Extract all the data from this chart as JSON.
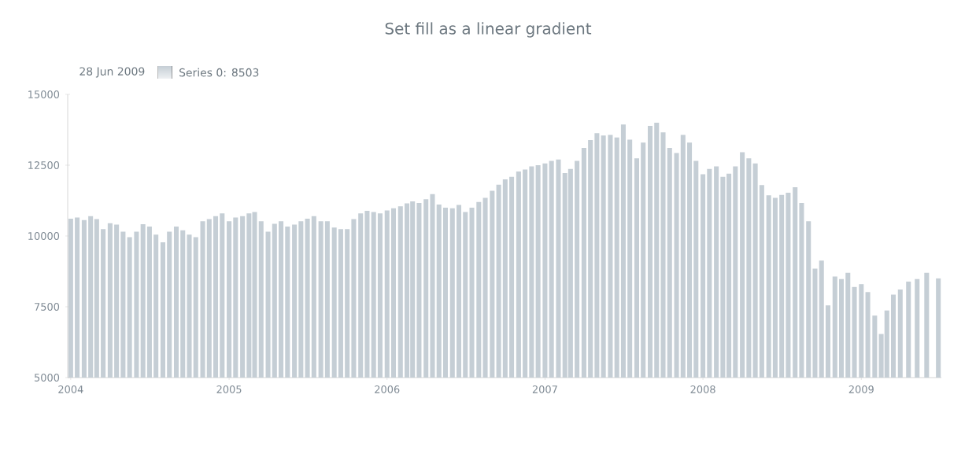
{
  "chart_data": {
    "type": "bar",
    "title": "Set fill as a linear gradient",
    "legend_title": "28 Jun 2009",
    "legend": "top left",
    "x": [
      "2004-01-01",
      "2004-01-16",
      "2004-02-01",
      "2004-02-16",
      "2004-03-01",
      "2004-03-16",
      "2004-04-01",
      "2004-04-16",
      "2004-05-01",
      "2004-05-16",
      "2004-06-01",
      "2004-06-16",
      "2004-07-01",
      "2004-07-16",
      "2004-08-01",
      "2004-08-16",
      "2004-09-01",
      "2004-09-16",
      "2004-10-01",
      "2004-10-16",
      "2004-11-01",
      "2004-11-16",
      "2004-12-01",
      "2004-12-16",
      "2005-01-01",
      "2005-01-16",
      "2005-02-01",
      "2005-02-16",
      "2005-03-01",
      "2005-03-16",
      "2005-04-01",
      "2005-04-16",
      "2005-05-01",
      "2005-05-16",
      "2005-06-01",
      "2005-06-16",
      "2005-07-01",
      "2005-07-16",
      "2005-08-01",
      "2005-08-16",
      "2005-09-01",
      "2005-09-16",
      "2005-10-01",
      "2005-10-16",
      "2005-11-01",
      "2005-11-16",
      "2005-12-01",
      "2005-12-16",
      "2006-01-01",
      "2006-01-16",
      "2006-02-01",
      "2006-02-16",
      "2006-03-01",
      "2006-03-16",
      "2006-04-01",
      "2006-04-16",
      "2006-05-01",
      "2006-05-16",
      "2006-06-01",
      "2006-06-16",
      "2006-07-01",
      "2006-07-16",
      "2006-08-01",
      "2006-08-16",
      "2006-09-01",
      "2006-09-16",
      "2006-10-01",
      "2006-10-16",
      "2006-11-01",
      "2006-11-16",
      "2006-12-01",
      "2006-12-16",
      "2007-01-01",
      "2007-01-16",
      "2007-02-01",
      "2007-02-16",
      "2007-03-01",
      "2007-03-16",
      "2007-04-01",
      "2007-04-16",
      "2007-05-01",
      "2007-05-16",
      "2007-06-01",
      "2007-06-16",
      "2007-07-01",
      "2007-07-16",
      "2007-08-01",
      "2007-08-16",
      "2007-09-01",
      "2007-09-16",
      "2007-10-01",
      "2007-10-16",
      "2007-11-01",
      "2007-11-16",
      "2007-12-01",
      "2007-12-16",
      "2008-01-01",
      "2008-01-16",
      "2008-02-01",
      "2008-02-16",
      "2008-03-01",
      "2008-03-16",
      "2008-04-01",
      "2008-04-16",
      "2008-05-01",
      "2008-05-16",
      "2008-06-01",
      "2008-06-16",
      "2008-07-01",
      "2008-07-16",
      "2008-08-01",
      "2008-08-16",
      "2008-09-01",
      "2008-09-16",
      "2008-10-01",
      "2008-10-16",
      "2008-11-01",
      "2008-11-16",
      "2008-12-01",
      "2008-12-16",
      "2009-01-01",
      "2009-01-16",
      "2009-02-01",
      "2009-02-16",
      "2009-03-01",
      "2009-03-16",
      "2009-04-01",
      "2009-04-20",
      "2009-05-10",
      "2009-06-01",
      "2009-06-28"
    ],
    "series": [
      {
        "name": "Series 0: 8503",
        "color": "#c5ced5",
        "values": [
          10610,
          10650,
          10560,
          10700,
          10600,
          10240,
          10450,
          10400,
          10150,
          9960,
          10150,
          10420,
          10330,
          10050,
          9780,
          10150,
          10330,
          10200,
          10050,
          9960,
          10520,
          10600,
          10700,
          10800,
          10520,
          10650,
          10700,
          10800,
          10850,
          10520,
          10150,
          10430,
          10520,
          10330,
          10400,
          10520,
          10610,
          10700,
          10520,
          10520,
          10300,
          10240,
          10240,
          10600,
          10800,
          10890,
          10850,
          10800,
          10900,
          10980,
          11050,
          11150,
          11220,
          11170,
          11300,
          11480,
          11110,
          11000,
          10980,
          11100,
          10850,
          11000,
          11200,
          11350,
          11600,
          11810,
          12000,
          12090,
          12280,
          12350,
          12460,
          12500,
          12560,
          12650,
          12700,
          12220,
          12370,
          12650,
          13110,
          13390,
          13630,
          13550,
          13570,
          13480,
          13940,
          13400,
          12740,
          13300,
          13890,
          14000,
          13660,
          13110,
          12930,
          13570,
          13300,
          12650,
          12180,
          12370,
          12460,
          12090,
          12200,
          12460,
          12960,
          12740,
          12560,
          11800,
          11440,
          11350,
          11450,
          11530,
          11720,
          11170,
          10520,
          8850,
          9130,
          7550,
          8570,
          8480,
          8700,
          8200,
          8300,
          8020,
          7190,
          6540,
          7370,
          7930,
          8110,
          8390,
          8480,
          8700,
          8503
        ]
      }
    ],
    "xlim": [
      "2003-12-25",
      "2009-07-05"
    ],
    "xticks": [
      "2004",
      "2005",
      "2006",
      "2007",
      "2008",
      "2009"
    ],
    "ylim": [
      5000,
      15000
    ],
    "yticks": [
      5000,
      7500,
      10000,
      12500,
      15000
    ]
  }
}
